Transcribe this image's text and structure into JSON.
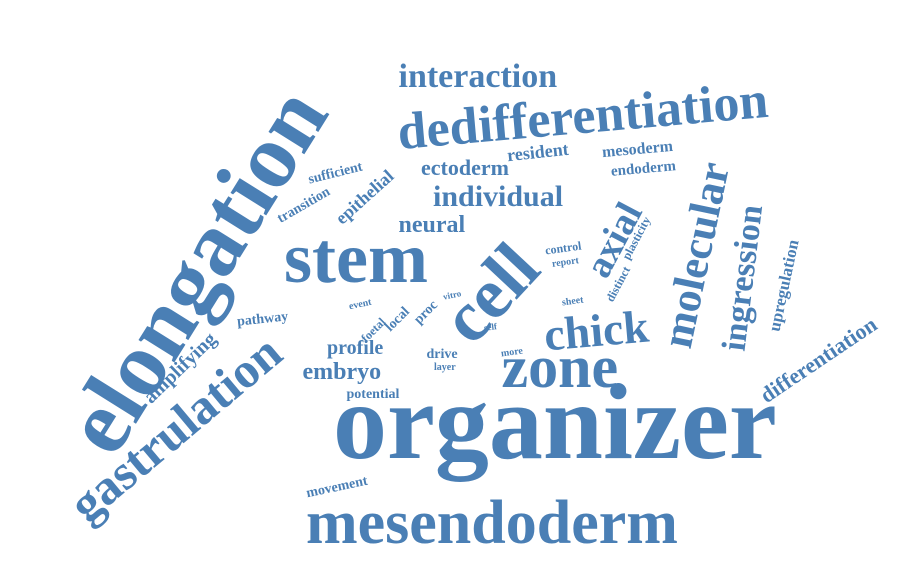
{
  "cloud": {
    "color": "#4a7fb5",
    "words": [
      "organizer",
      "elongation",
      "mesendoderm",
      "stem",
      "gastrulation",
      "dedifferentiation",
      "cell",
      "zone",
      "molecular",
      "chick",
      "interaction",
      "ingression",
      "axial",
      "individual",
      "embryo",
      "amplifying",
      "differentiation",
      "upregulation",
      "neural",
      "profile",
      "ectoderm",
      "epithelial",
      "resident",
      "mesoderm",
      "endoderm",
      "sufficient",
      "transition",
      "pathway",
      "potential",
      "movement",
      "plasticity",
      "distinct",
      "control",
      "report",
      "event",
      "vitro",
      "foetal",
      "local",
      "proc",
      "sheet",
      "self",
      "drive",
      "layer",
      "more"
    ]
  }
}
